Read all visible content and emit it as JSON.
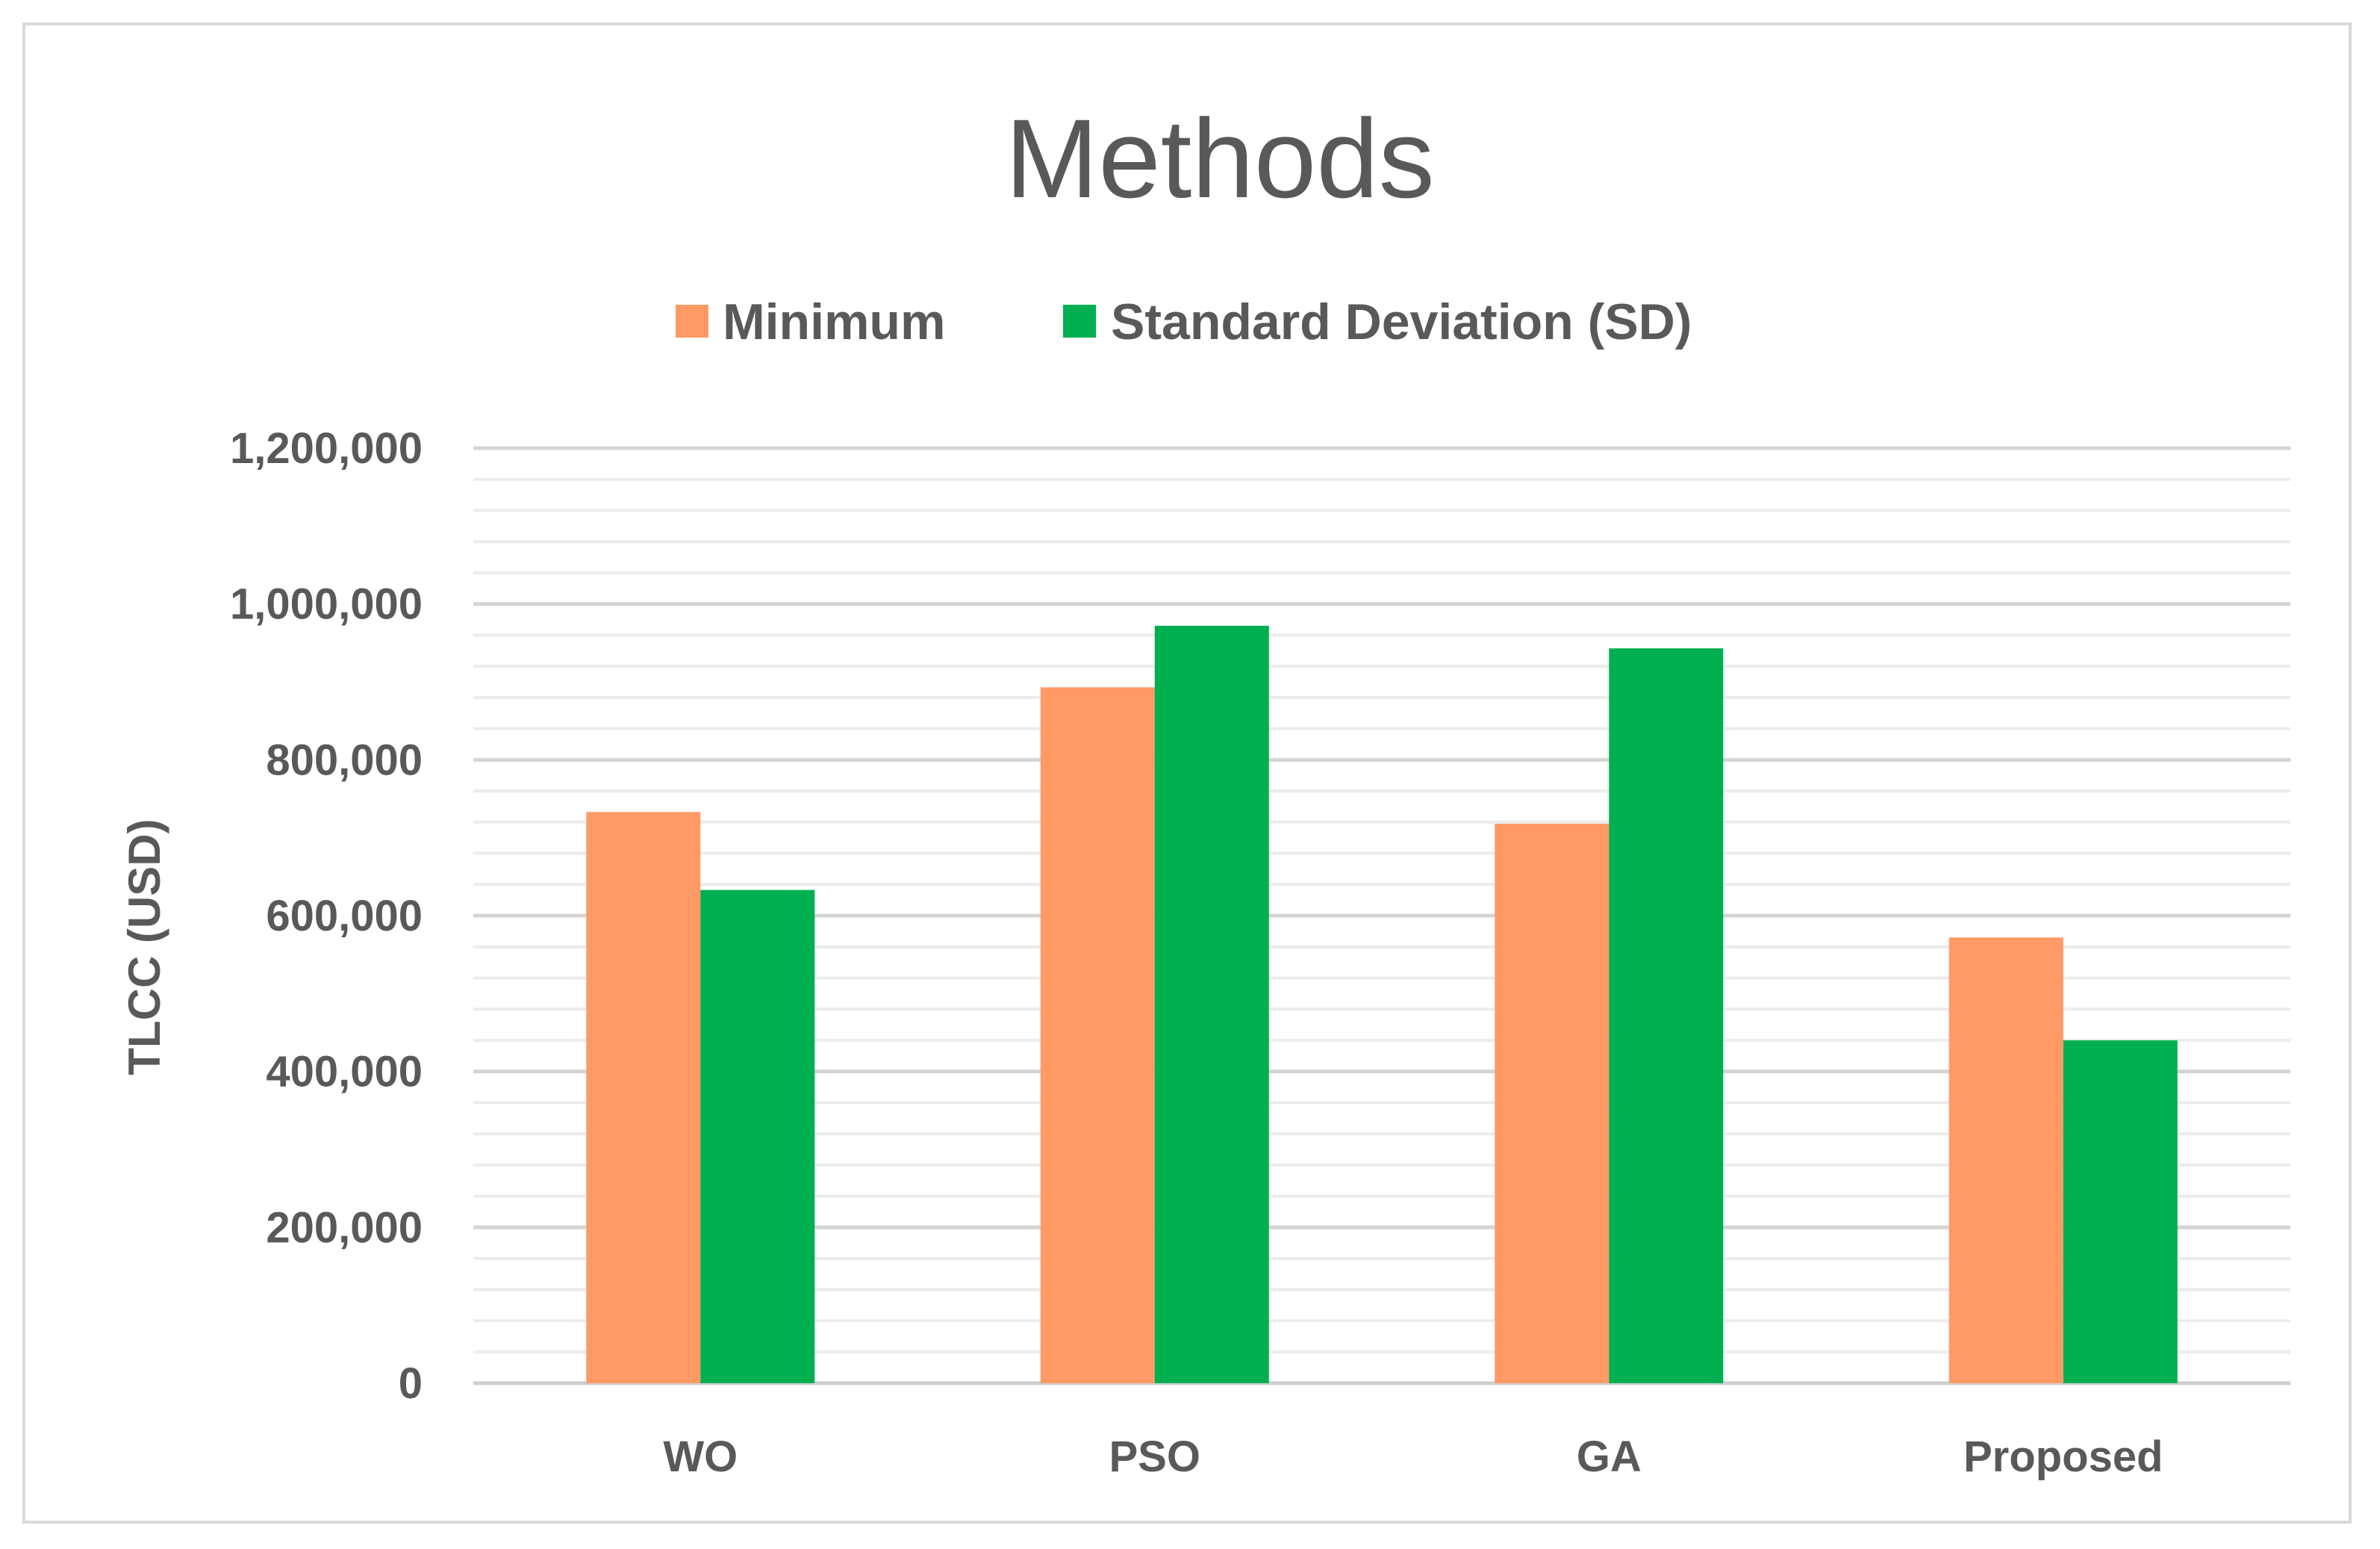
{
  "chart_data": {
    "type": "bar",
    "title": "Methods",
    "xlabel": "",
    "ylabel": "TLCC (USD)",
    "categories": [
      "WO",
      "PSO",
      "GA",
      "Proposed"
    ],
    "series": [
      {
        "name": "Minimum",
        "color": "#ff9966",
        "values": [
          733000,
          893000,
          718000,
          572000
        ]
      },
      {
        "name": "Standard Deviation (SD)",
        "color": "#00b050",
        "values": [
          633000,
          972000,
          943000,
          440000
        ]
      }
    ],
    "ylim": [
      0,
      1200000
    ],
    "yticks": [
      0,
      200000,
      400000,
      600000,
      800000,
      1000000,
      1200000
    ],
    "ytick_labels": [
      "0",
      "200,000",
      "400,000",
      "600,000",
      "800,000",
      "1,000,000",
      "1,200,000"
    ],
    "minor_step": 40000,
    "grid": true,
    "legend_position": "top-center"
  }
}
